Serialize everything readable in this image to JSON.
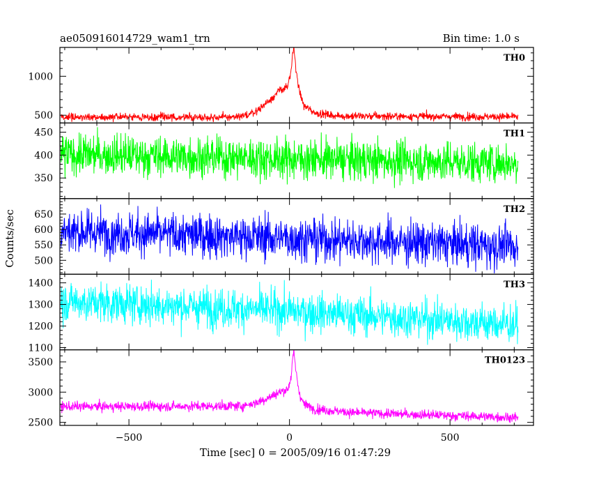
{
  "header": {
    "title": "ae050916014729_wam1_trn",
    "bin_time": "Bin time: 1.0 s"
  },
  "axes": {
    "xlabel": "Time [sec] 0 = 2005/09/16 01:47:29",
    "ylabel": "Counts/sec"
  },
  "chart_data": {
    "type": "line",
    "title": "ae050916014729_wam1_trn",
    "subtitle": "Bin time: 1.0 s",
    "xlabel": "Time [sec] 0 = 2005/09/16 01:47:29",
    "ylabel": "Counts/sec",
    "xlim": [
      -715,
      760
    ],
    "x_ticks": [
      -500,
      0,
      500
    ],
    "x_tick_labels": [
      "−500",
      "0",
      "500"
    ],
    "x_range": [
      -712,
      712
    ],
    "bin_seconds": 1.0,
    "grid": false,
    "legend": "none",
    "panels": [
      {
        "name": "TH0",
        "color": "#ff0000",
        "ylim": [
          400,
          1370
        ],
        "ticks": [
          500,
          1000
        ],
        "baseline": [
          [
            -712,
            475
          ],
          [
            -150,
            475
          ],
          [
            -100,
            560
          ],
          [
            -60,
            700
          ],
          [
            -30,
            820
          ],
          [
            -5,
            870
          ],
          [
            5,
            1050
          ],
          [
            10,
            1300
          ],
          [
            14,
            1360
          ],
          [
            20,
            1100
          ],
          [
            30,
            820
          ],
          [
            45,
            620
          ],
          [
            80,
            530
          ],
          [
            150,
            490
          ],
          [
            712,
            480
          ]
        ],
        "noise": 25
      },
      {
        "name": "TH1",
        "color": "#00ff00",
        "ylim": [
          305,
          470
        ],
        "ticks": [
          350,
          400,
          450
        ],
        "baseline": [
          [
            -712,
            402
          ],
          [
            0,
            392
          ],
          [
            712,
            382
          ]
        ],
        "noise": 22
      },
      {
        "name": "TH2",
        "color": "#0000ff",
        "ylim": [
          455,
          700
        ],
        "ticks": [
          500,
          550,
          600,
          650
        ],
        "baseline": [
          [
            -712,
            595
          ],
          [
            0,
            572
          ],
          [
            712,
            545
          ]
        ],
        "noise": 35
      },
      {
        "name": "TH3",
        "color": "#00ffff",
        "ylim": [
          1090,
          1440
        ],
        "ticks": [
          1100,
          1200,
          1300,
          1400
        ],
        "baseline": [
          [
            -712,
            1315
          ],
          [
            0,
            1270
          ],
          [
            712,
            1205
          ]
        ],
        "noise": 45
      },
      {
        "name": "TH0123",
        "color": "#ff00ff",
        "ylim": [
          2450,
          3700
        ],
        "ticks": [
          2500,
          3000,
          3500
        ],
        "baseline": [
          [
            -712,
            2760
          ],
          [
            -150,
            2770
          ],
          [
            -100,
            2830
          ],
          [
            -60,
            2920
          ],
          [
            -30,
            3000
          ],
          [
            -5,
            3050
          ],
          [
            5,
            3250
          ],
          [
            10,
            3550
          ],
          [
            14,
            3650
          ],
          [
            20,
            3350
          ],
          [
            30,
            3000
          ],
          [
            45,
            2800
          ],
          [
            80,
            2720
          ],
          [
            200,
            2660
          ],
          [
            712,
            2580
          ]
        ],
        "noise": 40
      }
    ]
  }
}
